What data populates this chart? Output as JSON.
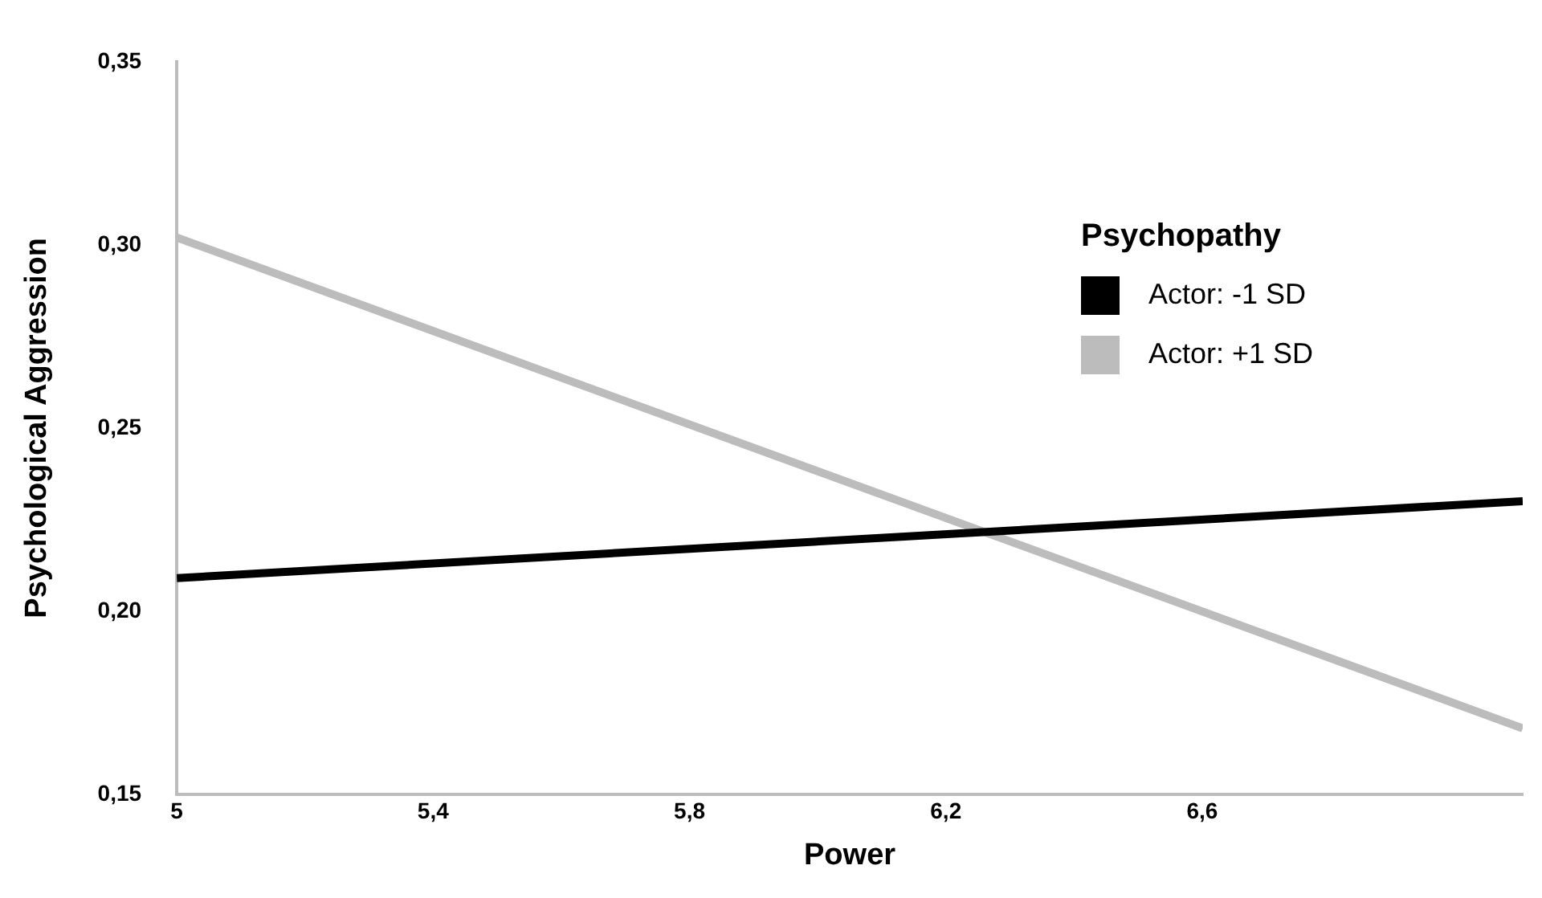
{
  "chart_data": {
    "type": "line",
    "xlabel": "Power",
    "ylabel": "Psychological Aggression",
    "legend_title": "Psychopathy",
    "legend": "top right",
    "grid": false,
    "marker": "none",
    "line_style": "solid",
    "x": [
      5,
      7.1
    ],
    "series": [
      {
        "name": "Actor: -1 SD",
        "color": "#000000",
        "values": [
          0.209,
          0.23
        ]
      },
      {
        "name": "Actor: +1 SD",
        "color": "#bcbcbc",
        "values": [
          0.302,
          0.168
        ]
      }
    ],
    "xlim": [
      5,
      7.1
    ],
    "xticks": [
      {
        "value": 5,
        "label": "5"
      },
      {
        "value": 5.4,
        "label": "5,4"
      },
      {
        "value": 5.8,
        "label": "5,8"
      },
      {
        "value": 6.2,
        "label": "6,2"
      },
      {
        "value": 6.6,
        "label": "6,6"
      }
    ],
    "ylim": [
      0.15,
      0.35
    ],
    "yticks": [
      {
        "value": 0.15,
        "label": "0,15"
      },
      {
        "value": 0.2,
        "label": "0,20"
      },
      {
        "value": 0.25,
        "label": "0,25"
      },
      {
        "value": 0.3,
        "label": "0,30"
      },
      {
        "value": 0.35,
        "label": "0,35"
      }
    ]
  }
}
